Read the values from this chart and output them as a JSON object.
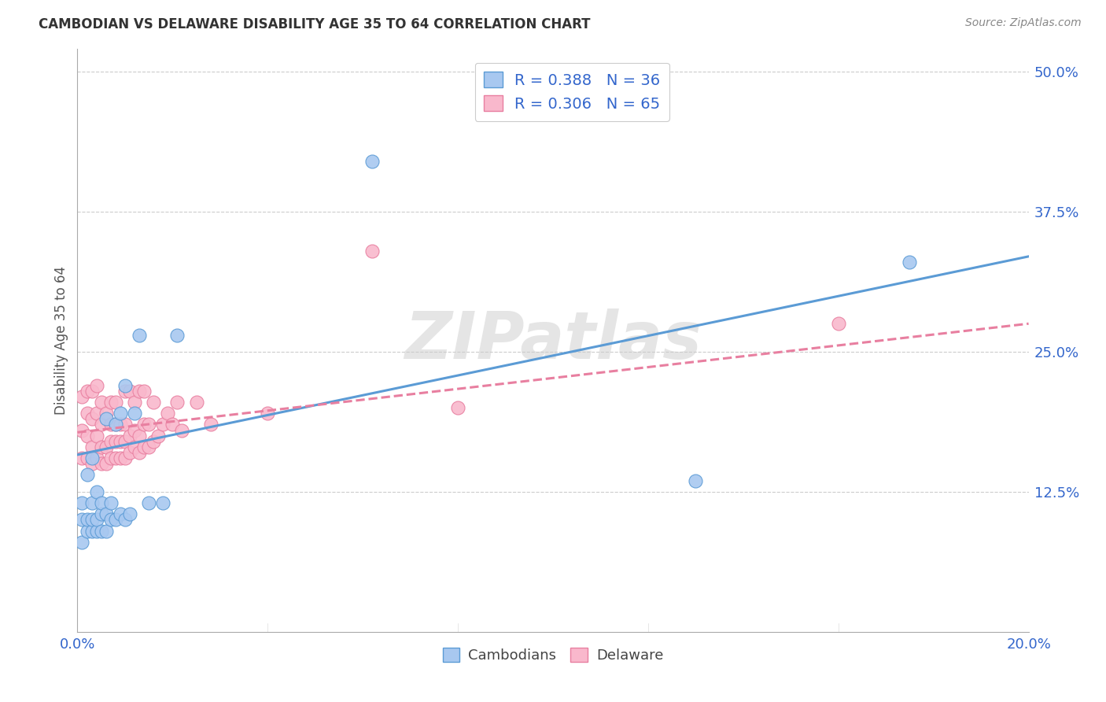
{
  "title": "CAMBODIAN VS DELAWARE DISABILITY AGE 35 TO 64 CORRELATION CHART",
  "source": "Source: ZipAtlas.com",
  "ylabel": "Disability Age 35 to 64",
  "xlim": [
    0.0,
    0.2
  ],
  "ylim": [
    0.0,
    0.52
  ],
  "yticks": [
    0.0,
    0.125,
    0.25,
    0.375,
    0.5
  ],
  "ytick_labels": [
    "",
    "12.5%",
    "25.0%",
    "37.5%",
    "50.0%"
  ],
  "xticks": [
    0.0,
    0.04,
    0.08,
    0.12,
    0.16,
    0.2
  ],
  "xtick_labels": [
    "0.0%",
    "",
    "",
    "",
    "",
    "20.0%"
  ],
  "cambodian_color": "#a8c8f0",
  "delaware_color": "#f9b8cc",
  "cambodian_R": 0.388,
  "cambodian_N": 36,
  "delaware_R": 0.306,
  "delaware_N": 65,
  "cambodian_line_color": "#5b9bd5",
  "delaware_line_color": "#e87fa0",
  "background_color": "#ffffff",
  "watermark": "ZIPatlas",
  "cambodian_x": [
    0.001,
    0.001,
    0.001,
    0.002,
    0.002,
    0.002,
    0.003,
    0.003,
    0.003,
    0.003,
    0.004,
    0.004,
    0.004,
    0.005,
    0.005,
    0.005,
    0.006,
    0.006,
    0.006,
    0.007,
    0.007,
    0.008,
    0.008,
    0.009,
    0.009,
    0.01,
    0.01,
    0.011,
    0.012,
    0.013,
    0.015,
    0.018,
    0.021,
    0.062,
    0.13,
    0.175
  ],
  "cambodian_y": [
    0.08,
    0.1,
    0.115,
    0.09,
    0.1,
    0.14,
    0.09,
    0.1,
    0.115,
    0.155,
    0.09,
    0.1,
    0.125,
    0.09,
    0.105,
    0.115,
    0.09,
    0.105,
    0.19,
    0.1,
    0.115,
    0.1,
    0.185,
    0.105,
    0.195,
    0.1,
    0.22,
    0.105,
    0.195,
    0.265,
    0.115,
    0.115,
    0.265,
    0.42,
    0.135,
    0.33
  ],
  "delaware_x": [
    0.001,
    0.001,
    0.001,
    0.002,
    0.002,
    0.002,
    0.002,
    0.003,
    0.003,
    0.003,
    0.003,
    0.004,
    0.004,
    0.004,
    0.004,
    0.005,
    0.005,
    0.005,
    0.005,
    0.006,
    0.006,
    0.006,
    0.007,
    0.007,
    0.007,
    0.007,
    0.008,
    0.008,
    0.008,
    0.008,
    0.009,
    0.009,
    0.009,
    0.01,
    0.01,
    0.01,
    0.01,
    0.011,
    0.011,
    0.011,
    0.012,
    0.012,
    0.012,
    0.013,
    0.013,
    0.013,
    0.014,
    0.014,
    0.014,
    0.015,
    0.015,
    0.016,
    0.016,
    0.017,
    0.018,
    0.019,
    0.02,
    0.021,
    0.022,
    0.025,
    0.028,
    0.04,
    0.062,
    0.08,
    0.16
  ],
  "delaware_y": [
    0.155,
    0.18,
    0.21,
    0.155,
    0.175,
    0.195,
    0.215,
    0.15,
    0.165,
    0.19,
    0.215,
    0.155,
    0.175,
    0.195,
    0.22,
    0.15,
    0.165,
    0.185,
    0.205,
    0.15,
    0.165,
    0.195,
    0.155,
    0.17,
    0.185,
    0.205,
    0.155,
    0.17,
    0.185,
    0.205,
    0.155,
    0.17,
    0.185,
    0.155,
    0.17,
    0.185,
    0.215,
    0.16,
    0.175,
    0.215,
    0.165,
    0.18,
    0.205,
    0.16,
    0.175,
    0.215,
    0.165,
    0.185,
    0.215,
    0.165,
    0.185,
    0.17,
    0.205,
    0.175,
    0.185,
    0.195,
    0.185,
    0.205,
    0.18,
    0.205,
    0.185,
    0.195,
    0.34,
    0.2,
    0.275
  ],
  "cam_line_x": [
    0.0,
    0.2
  ],
  "cam_line_y": [
    0.158,
    0.335
  ],
  "del_line_x": [
    0.0,
    0.2
  ],
  "del_line_y": [
    0.178,
    0.275
  ]
}
